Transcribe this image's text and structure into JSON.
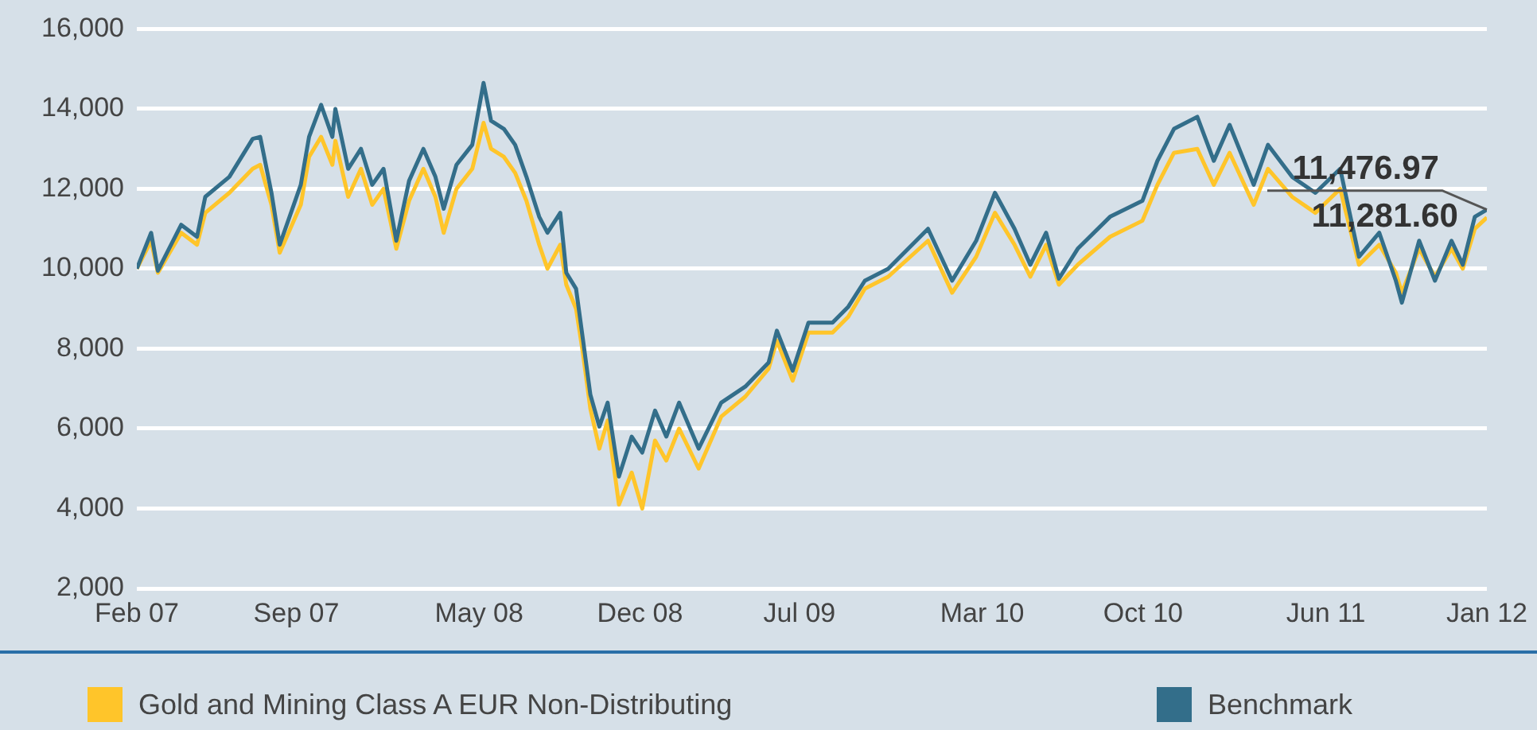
{
  "chart_data": {
    "type": "line",
    "x": [
      "2007-02-01",
      "2007-02-20",
      "2007-03-01",
      "2007-04-01",
      "2007-04-22",
      "2007-05-03",
      "2007-06-04",
      "2007-07-05",
      "2007-07-15",
      "2007-07-30",
      "2007-08-10",
      "2007-09-07",
      "2007-09-18",
      "2007-10-04",
      "2007-10-19",
      "2007-10-23",
      "2007-11-09",
      "2007-11-26",
      "2007-12-11",
      "2007-12-26",
      "2008-01-12",
      "2008-01-29",
      "2008-02-17",
      "2008-03-04",
      "2008-03-15",
      "2008-04-01",
      "2008-04-22",
      "2008-05-07",
      "2008-05-17",
      "2008-06-03",
      "2008-06-18",
      "2008-07-03",
      "2008-07-20",
      "2008-07-31",
      "2008-08-17",
      "2008-08-25",
      "2008-09-07",
      "2008-09-16",
      "2008-09-26",
      "2008-10-08",
      "2008-10-19",
      "2008-11-03",
      "2008-11-20",
      "2008-12-04",
      "2008-12-21",
      "2009-01-05",
      "2009-01-22",
      "2009-02-17",
      "2009-03-19",
      "2009-04-20",
      "2009-05-21",
      "2009-06-01",
      "2009-06-22",
      "2009-07-13",
      "2009-08-14",
      "2009-09-04",
      "2009-09-26",
      "2009-10-27",
      "2009-12-19",
      "2010-01-20",
      "2010-02-21",
      "2010-03-18",
      "2010-04-13",
      "2010-05-04",
      "2010-05-25",
      "2010-06-11",
      "2010-07-06",
      "2010-08-18",
      "2010-09-30",
      "2010-10-20",
      "2010-11-11",
      "2010-12-12",
      "2011-01-03",
      "2011-01-24",
      "2011-02-25",
      "2011-03-16",
      "2011-04-17",
      "2011-05-18",
      "2011-06-20",
      "2011-07-15",
      "2011-08-11",
      "2011-09-02",
      "2011-09-10",
      "2011-10-03",
      "2011-10-24",
      "2011-11-15",
      "2011-11-30",
      "2011-12-16",
      "2012-01-01"
    ],
    "series": [
      {
        "name": "Gold and Mining Class A EUR Non-Distributing",
        "color": "#ffc52a",
        "values": [
          10000,
          10700,
          9900,
          10900,
          10600,
          11400,
          11900,
          12500,
          12600,
          11600,
          10400,
          11600,
          12800,
          13300,
          12600,
          13200,
          11800,
          12500,
          11600,
          12000,
          10500,
          11700,
          12500,
          11800,
          10900,
          12000,
          12500,
          13650,
          13000,
          12800,
          12400,
          11700,
          10600,
          10000,
          10600,
          9600,
          9000,
          7900,
          6500,
          5500,
          6200,
          4100,
          4900,
          4000,
          5700,
          5200,
          6000,
          5000,
          6300,
          6800,
          7500,
          8200,
          7200,
          8400,
          8400,
          8800,
          9500,
          9800,
          10700,
          9400,
          10300,
          11400,
          10600,
          9800,
          10600,
          9600,
          10100,
          10800,
          11200,
          12100,
          12900,
          13000,
          12100,
          12900,
          11600,
          12500,
          11800,
          11400,
          12000,
          10100,
          10600,
          9900,
          9400,
          10500,
          9800,
          10500,
          10000,
          11000,
          11281.6
        ]
      },
      {
        "name": "Benchmark",
        "color": "#336e8a",
        "values": [
          10000,
          10900,
          9950,
          11100,
          10800,
          11800,
          12300,
          13250,
          13300,
          11900,
          10600,
          12100,
          13300,
          14100,
          13300,
          14000,
          12500,
          13000,
          12100,
          12500,
          10700,
          12200,
          13000,
          12300,
          11500,
          12600,
          13100,
          14650,
          13700,
          13500,
          13100,
          12300,
          11300,
          10900,
          11400,
          9900,
          9500,
          8250,
          6850,
          6050,
          6650,
          4800,
          5800,
          5400,
          6450,
          5800,
          6650,
          5500,
          6650,
          7050,
          7650,
          8450,
          7450,
          8650,
          8650,
          9050,
          9700,
          10000,
          11000,
          9700,
          10700,
          11900,
          11000,
          10100,
          10900,
          9750,
          10500,
          11300,
          11700,
          12700,
          13500,
          13800,
          12700,
          13600,
          12100,
          13100,
          12300,
          11900,
          12500,
          10300,
          10900,
          9700,
          9150,
          10700,
          9700,
          10700,
          10100,
          11300,
          11476.97
        ]
      }
    ],
    "xlim": [
      "2007-02-01",
      "2012-01-01"
    ],
    "xticks": [
      {
        "value": "2007-02-01",
        "label": "Feb 07"
      },
      {
        "value": "2007-09-01",
        "label": "Sep 07"
      },
      {
        "value": "2008-05-01",
        "label": "May 08"
      },
      {
        "value": "2008-12-01",
        "label": "Dec 08"
      },
      {
        "value": "2009-07-01",
        "label": "Jul 09"
      },
      {
        "value": "2010-03-01",
        "label": "Mar 10"
      },
      {
        "value": "2010-10-01",
        "label": "Oct 10"
      },
      {
        "value": "2011-06-01",
        "label": "Jun 11"
      },
      {
        "value": "2012-01-01",
        "label": "Jan 12"
      }
    ],
    "ylim": [
      2000,
      16000
    ],
    "yticks": [
      {
        "value": 2000,
        "label": "2,000"
      },
      {
        "value": 4000,
        "label": "4,000"
      },
      {
        "value": 6000,
        "label": "6,000"
      },
      {
        "value": 8000,
        "label": "8,000"
      },
      {
        "value": 10000,
        "label": "10,000"
      },
      {
        "value": 12000,
        "label": "12,000"
      },
      {
        "value": 14000,
        "label": "14,000"
      },
      {
        "value": 16000,
        "label": "16,000"
      }
    ],
    "annotations": [
      {
        "text": "11,476.97",
        "x": "2012-01-01",
        "y": 11476.97
      },
      {
        "text": "11,281.60",
        "x": "2012-01-01",
        "y": 11281.6
      }
    ],
    "grid": "y",
    "legend": "bottom",
    "marker": "none",
    "line_style": "solid"
  }
}
